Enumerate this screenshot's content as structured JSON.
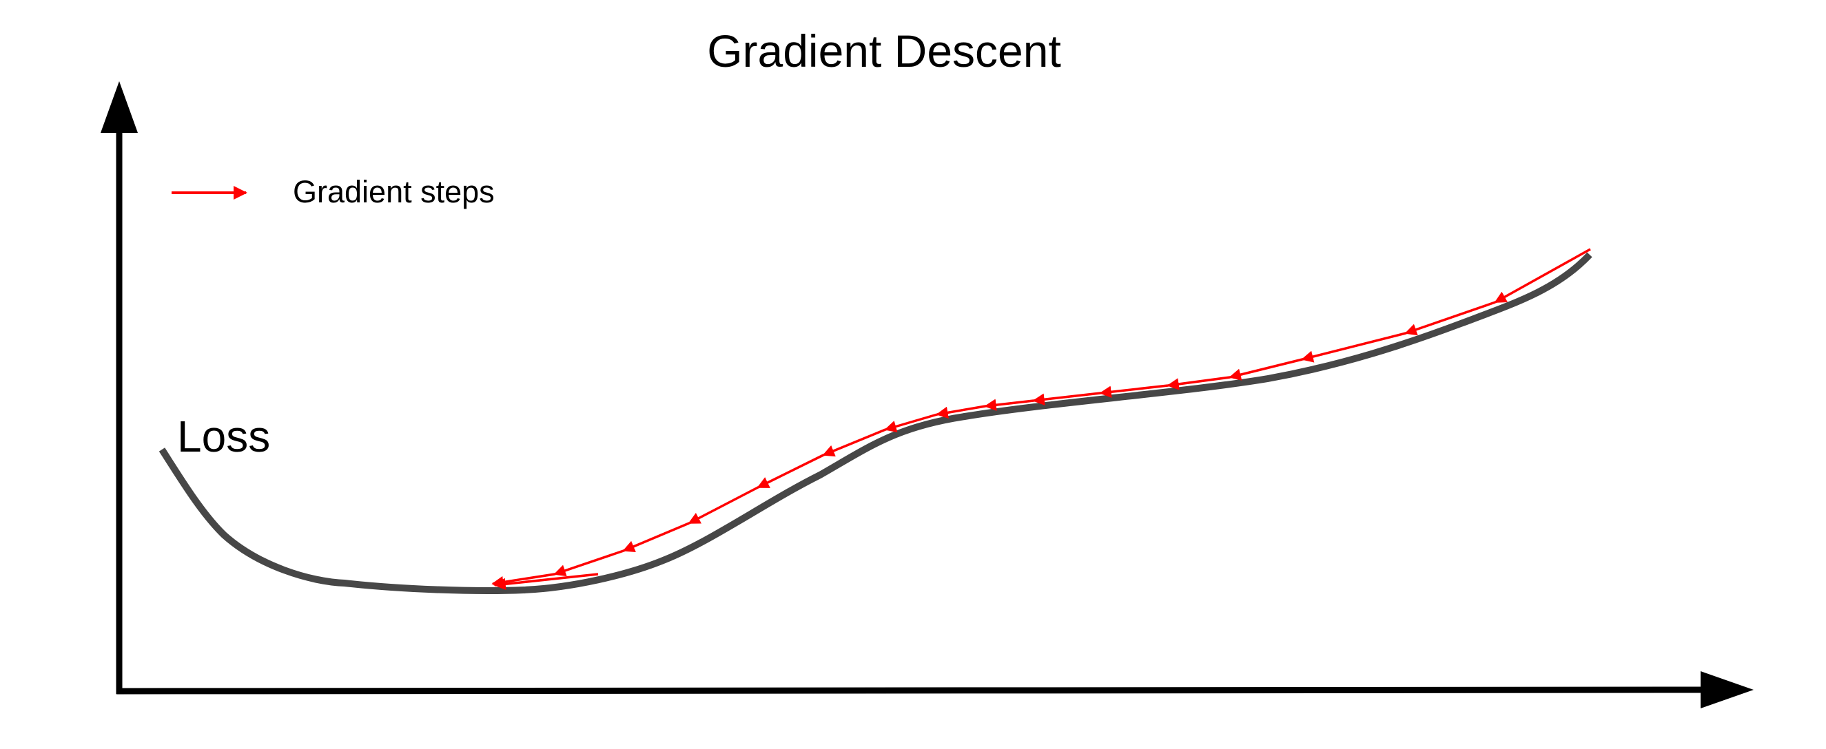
{
  "diagram": {
    "title": "Gradient Descent",
    "curve_label": "Loss",
    "legend": {
      "label": "Gradient steps"
    },
    "colors": {
      "axis": "#000000",
      "curve": "#474747",
      "steps": "#ff0000",
      "text": "#000000"
    },
    "step_count": 17
  }
}
